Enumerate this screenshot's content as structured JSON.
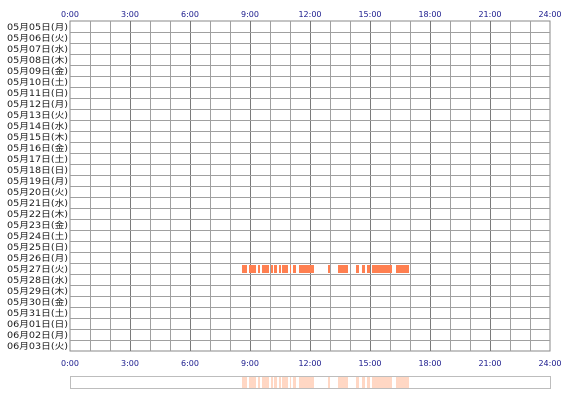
{
  "chart_data": {
    "type": "heatmap",
    "hour_ticks": [
      "0:00",
      "3:00",
      "6:00",
      "9:00",
      "12:00",
      "15:00",
      "18:00",
      "21:00",
      "24:00"
    ],
    "days": [
      "05月05日(月)",
      "05月06日(火)",
      "05月07日(水)",
      "05月08日(木)",
      "05月09日(金)",
      "05月10日(土)",
      "05月11日(日)",
      "05月12日(月)",
      "05月13日(火)",
      "05月14日(水)",
      "05月15日(木)",
      "05月16日(金)",
      "05月17日(土)",
      "05月18日(日)",
      "05月19日(月)",
      "05月20日(火)",
      "05月21日(水)",
      "05月22日(木)",
      "05月23日(金)",
      "05月24日(土)",
      "05月25日(日)",
      "05月26日(月)",
      "05月27日(火)",
      "05月28日(水)",
      "05月29日(木)",
      "05月30日(金)",
      "05月31日(土)",
      "06月01日(日)",
      "06月02日(月)",
      "06月03日(火)"
    ],
    "x_range_hours": [
      0,
      24
    ],
    "grid": true,
    "active_color": "#ff7f50",
    "summary_color": "#ffd7c4",
    "activity": [
      {
        "day": "05月27日(火)",
        "intervals": [
          [
            8.6,
            8.85
          ],
          [
            8.95,
            9.3
          ],
          [
            9.4,
            9.5
          ],
          [
            9.6,
            9.95
          ],
          [
            10.05,
            10.15
          ],
          [
            10.2,
            10.35
          ],
          [
            10.45,
            10.55
          ],
          [
            10.6,
            10.9
          ],
          [
            11.0,
            11.05
          ],
          [
            11.15,
            11.3
          ],
          [
            11.45,
            12.2
          ],
          [
            12.9,
            13.0
          ],
          [
            13.4,
            13.9
          ],
          [
            14.3,
            14.45
          ],
          [
            14.6,
            14.75
          ],
          [
            14.85,
            15.0
          ],
          [
            15.1,
            16.1
          ],
          [
            16.3,
            16.95
          ]
        ]
      }
    ]
  }
}
